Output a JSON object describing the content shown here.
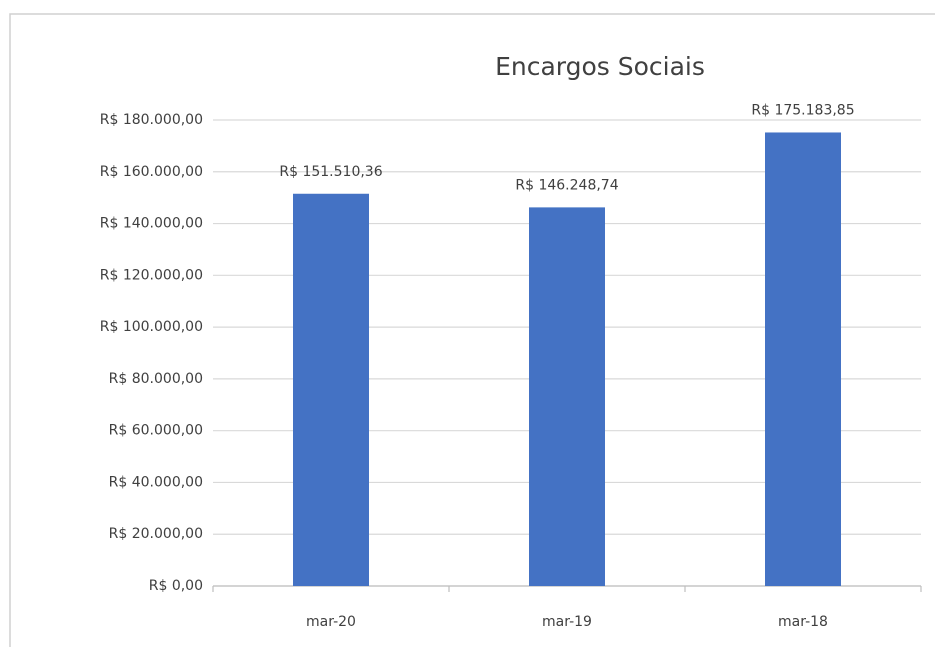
{
  "chart_data": {
    "type": "bar",
    "title": "Encargos Sociais",
    "categories": [
      "mar-20",
      "mar-19",
      "mar-18"
    ],
    "values": [
      151510.36,
      146248.74,
      175183.85
    ],
    "value_labels": [
      "R$ 151.510,36",
      "R$ 146.248,74",
      "R$ 175.183,85"
    ],
    "color": "#4472c4",
    "ylim": [
      0,
      180000
    ],
    "yticks": [
      {
        "value": 0,
        "label": "R$ 0,00"
      },
      {
        "value": 20000,
        "label": "R$ 20.000,00"
      },
      {
        "value": 40000,
        "label": "R$ 40.000,00"
      },
      {
        "value": 60000,
        "label": "R$ 60.000,00"
      },
      {
        "value": 80000,
        "label": "R$ 80.000,00"
      },
      {
        "value": 100000,
        "label": "R$ 100.000,00"
      },
      {
        "value": 120000,
        "label": "R$ 120.000,00"
      },
      {
        "value": 140000,
        "label": "R$ 140.000,00"
      },
      {
        "value": 160000,
        "label": "R$ 160.000,00"
      },
      {
        "value": 180000,
        "label": "R$ 180.000,00"
      }
    ],
    "grid": true
  }
}
